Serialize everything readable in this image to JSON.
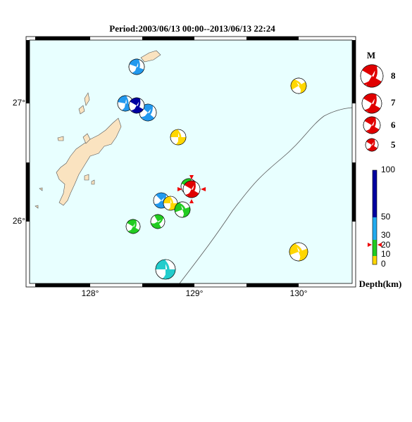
{
  "title": "Period:2003/06/13 00:00--2013/06/13 22:24",
  "map": {
    "lon_labels": [
      "128°",
      "129°",
      "130°"
    ],
    "lat_labels": [
      "27°",
      "26°"
    ]
  },
  "magnitude_legend": {
    "title": "M",
    "labels": [
      "8",
      "7",
      "6",
      "5"
    ]
  },
  "depth_legend": {
    "title": "Depth(km)",
    "labels": [
      "100",
      "50",
      "30",
      "20",
      "10",
      "0"
    ]
  }
}
